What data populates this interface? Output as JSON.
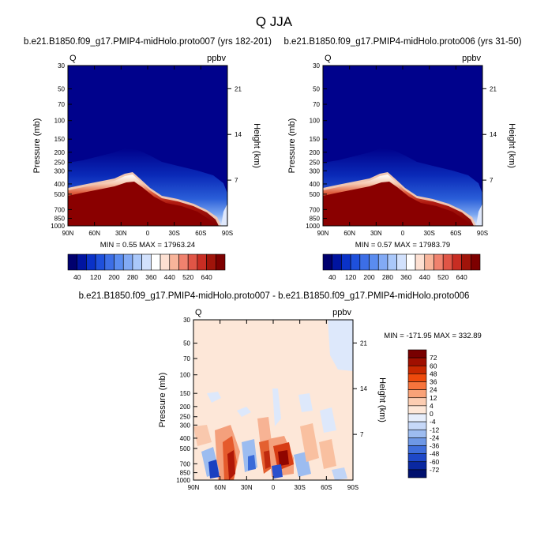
{
  "figure": {
    "title": "Q JJA"
  },
  "chart_data": [
    {
      "type": "heatmap",
      "title": "b.e21.B1850.f09_g17.PMIP4-midHolo.proto007 (yrs 182-201)",
      "variable": "Q",
      "units": "ppbv",
      "ylabel": "Pressure (mb)",
      "ylabel_right": "Height (km)",
      "x_ticks": [
        "90N",
        "60N",
        "30N",
        "0",
        "30S",
        "60S",
        "90S"
      ],
      "y_ticks": [
        30,
        50,
        70,
        100,
        150,
        200,
        250,
        300,
        400,
        500,
        700,
        850,
        1000
      ],
      "y_ticks_right": [
        21,
        14,
        7
      ],
      "ylim": [
        30,
        1000
      ],
      "y_scale": "log-pressure",
      "stats": "MIN =   0.55  MAX = 17963.24",
      "grid": false
    },
    {
      "type": "heatmap",
      "title": "b.e21.B1850.f09_g17.PMIP4-midHolo.proto006 (yrs 31-50)",
      "variable": "Q",
      "units": "ppbv",
      "ylabel": "Pressure (mb)",
      "ylabel_right": "Height (km)",
      "x_ticks": [
        "90N",
        "60N",
        "30N",
        "0",
        "30S",
        "60S",
        "90S"
      ],
      "y_ticks": [
        30,
        50,
        70,
        100,
        150,
        200,
        250,
        300,
        400,
        500,
        700,
        850,
        1000
      ],
      "y_ticks_right": [
        21,
        14,
        7
      ],
      "ylim": [
        30,
        1000
      ],
      "y_scale": "log-pressure",
      "stats": "MIN =   0.57  MAX = 17983.79",
      "grid": false
    },
    {
      "type": "heatmap",
      "title": "b.e21.B1850.f09_g17.PMIP4-midHolo.proto007 - b.e21.B1850.f09_g17.PMIP4-midHolo.proto006",
      "variable": "Q",
      "units": "ppbv",
      "ylabel": "Pressure (mb)",
      "ylabel_right": "Height (km)",
      "x_ticks": [
        "90N",
        "60N",
        "30N",
        "0",
        "30S",
        "60S",
        "90S"
      ],
      "y_ticks": [
        30,
        50,
        70,
        100,
        150,
        200,
        250,
        300,
        400,
        500,
        700,
        850,
        1000
      ],
      "y_ticks_right": [
        21,
        14,
        7
      ],
      "ylim": [
        30,
        1000
      ],
      "y_scale": "log-pressure",
      "stats": "MIN = -171.95  MAX = 332.89",
      "grid": false
    }
  ],
  "colorbars": {
    "absolute": {
      "labels": [
        "40",
        "120",
        "200",
        "280",
        "360",
        "440",
        "520",
        "640"
      ],
      "colors": [
        "#00006e",
        "#0014a0",
        "#0a32c8",
        "#1e50dc",
        "#3c6ee6",
        "#5a8cf0",
        "#82aaf5",
        "#aac8fa",
        "#d2e1fc",
        "#ffffff",
        "#fde0d2",
        "#f8b49a",
        "#f0826e",
        "#e05546",
        "#c82d23",
        "#a0140a",
        "#7d0000"
      ]
    },
    "difference": {
      "labels": [
        "72",
        "60",
        "48",
        "36",
        "24",
        "12",
        "4",
        "0",
        "-4",
        "-12",
        "-24",
        "-36",
        "-48",
        "-60",
        "-72"
      ],
      "colors": [
        "#780000",
        "#a00f00",
        "#c82800",
        "#ee4a0c",
        "#f7743c",
        "#f9a278",
        "#fccdb2",
        "#fde7d8",
        "#e6eefc",
        "#c6d8f8",
        "#9dbcf0",
        "#6e98e6",
        "#3f6edc",
        "#1e48c8",
        "#0a28a0",
        "#00106e"
      ]
    }
  }
}
